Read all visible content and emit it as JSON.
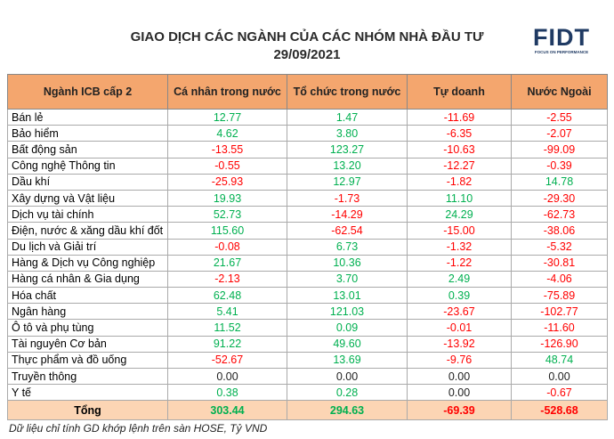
{
  "header": {
    "title": "GIAO DỊCH CÁC NGÀNH CỦA CÁC NHÓM NHÀ ĐẦU TƯ",
    "date": "29/09/2021"
  },
  "logo": {
    "name": "FIDT",
    "tagline": "FOCUS ON PERFORMANCE"
  },
  "table": {
    "columns": [
      "Ngành ICB cấp 2",
      "Cá nhân trong nước",
      "Tổ chức trong nước",
      "Tự doanh",
      "Nước Ngoài"
    ],
    "rows": [
      [
        "Bán lẻ",
        "12.77",
        "1.47",
        "-11.69",
        "-2.55"
      ],
      [
        "Bảo hiểm",
        "4.62",
        "3.80",
        "-6.35",
        "-2.07"
      ],
      [
        "Bất động sản",
        "-13.55",
        "123.27",
        "-10.63",
        "-99.09"
      ],
      [
        "Công nghệ Thông tin",
        "-0.55",
        "13.20",
        "-12.27",
        "-0.39"
      ],
      [
        "Dầu khí",
        "-25.93",
        "12.97",
        "-1.82",
        "14.78"
      ],
      [
        "Xây dựng và Vật liệu",
        "19.93",
        "-1.73",
        "11.10",
        "-29.30"
      ],
      [
        "Dịch vụ tài chính",
        "52.73",
        "-14.29",
        "24.29",
        "-62.73"
      ],
      [
        "Điện, nước & xăng dầu khí đốt",
        "115.60",
        "-62.54",
        "-15.00",
        "-38.06"
      ],
      [
        "Du lịch và Giải trí",
        "-0.08",
        "6.73",
        "-1.32",
        "-5.32"
      ],
      [
        "Hàng & Dịch vụ Công nghiệp",
        "21.67",
        "10.36",
        "-1.22",
        "-30.81"
      ],
      [
        "Hàng cá nhân & Gia dụng",
        "-2.13",
        "3.70",
        "2.49",
        "-4.06"
      ],
      [
        "Hóa chất",
        "62.48",
        "13.01",
        "0.39",
        "-75.89"
      ],
      [
        "Ngân hàng",
        "5.41",
        "121.03",
        "-23.67",
        "-102.77"
      ],
      [
        "Ô tô và phụ tùng",
        "11.52",
        "0.09",
        "-0.01",
        "-11.60"
      ],
      [
        "Tài nguyên Cơ bản",
        "91.22",
        "49.60",
        "-13.92",
        "-126.90"
      ],
      [
        "Thực phẩm và đồ uống",
        "-52.67",
        "13.69",
        "-9.76",
        "48.74"
      ],
      [
        "Truyền thông",
        "0.00",
        "0.00",
        "0.00",
        "0.00"
      ],
      [
        "Y tế",
        "0.38",
        "0.28",
        "0.00",
        "-0.67"
      ]
    ],
    "total": [
      "Tổng",
      "303.44",
      "294.63",
      "-69.39",
      "-528.68"
    ]
  },
  "footnote": "Dữ liệu chỉ tính GD khớp lệnh trên sàn HOSE, Tỷ VND"
}
